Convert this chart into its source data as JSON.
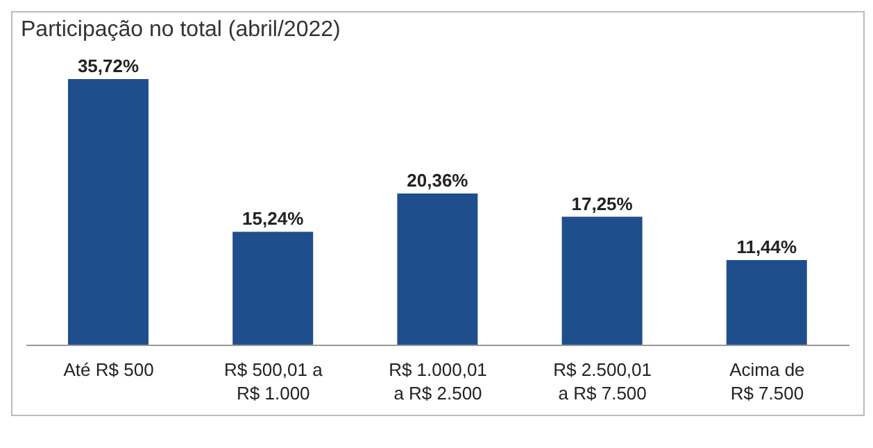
{
  "chart_data": {
    "type": "bar",
    "title": "Participação no total (abril/2022)",
    "categories": [
      "Até R$ 500",
      "R$ 500,01 a R$ 1.000",
      "R$ 1.000,01 a R$ 2.500",
      "R$ 2.500,01 a R$ 7.500",
      "Acima de R$ 7.500"
    ],
    "values": [
      35.72,
      15.24,
      20.36,
      17.25,
      11.44
    ],
    "value_labels": [
      "35,72%",
      "15,24%",
      "20,36%",
      "17,25%",
      "11,44%"
    ],
    "color": "#1f4e8c",
    "grid": false,
    "legend": false
  }
}
